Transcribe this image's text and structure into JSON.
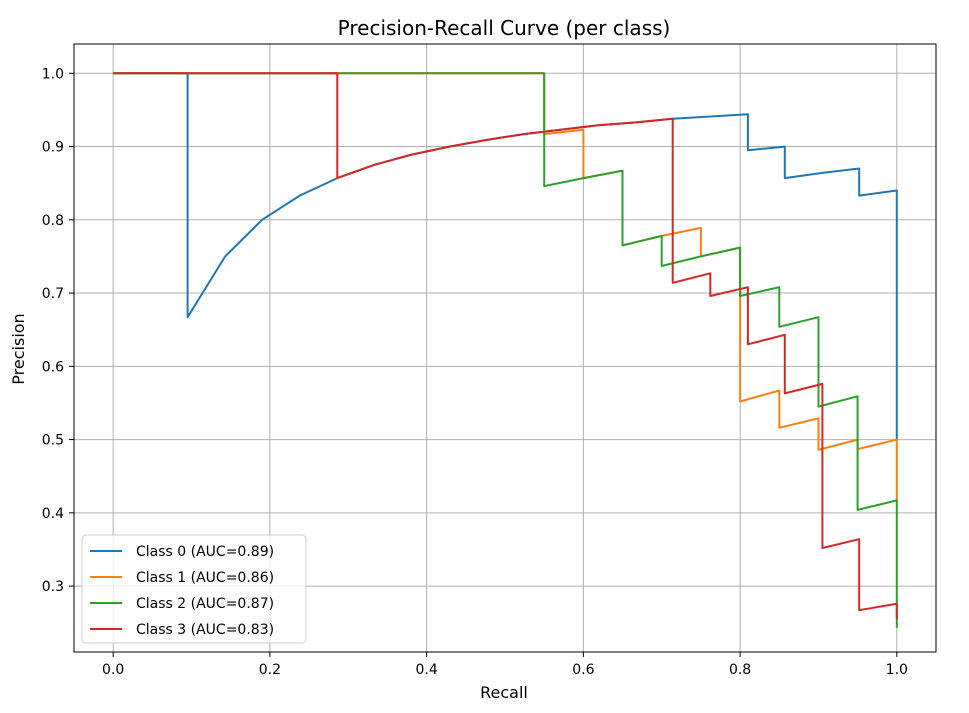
{
  "chart_data": {
    "type": "line",
    "title": "Precision-Recall Curve (per class)",
    "xlabel": "Recall",
    "ylabel": "Precision",
    "xlim": [
      -0.05,
      1.05
    ],
    "ylim": [
      0.21,
      1.04
    ],
    "x_ticks": [
      "0.0",
      "0.2",
      "0.4",
      "0.6",
      "0.8",
      "1.0"
    ],
    "y_ticks": [
      "0.3",
      "0.4",
      "0.5",
      "0.6",
      "0.7",
      "0.8",
      "0.9",
      "1.0"
    ],
    "grid": true,
    "legend_position": "lower-left",
    "series": [
      {
        "name": "Class 0 (AUC=0.89)",
        "color": "#1f77b4",
        "points": [
          [
            0,
            1
          ],
          [
            0.095,
            1
          ],
          [
            0.095,
            0.667
          ],
          [
            0.143,
            0.75
          ],
          [
            0.19,
            0.8
          ],
          [
            0.238,
            0.833
          ],
          [
            0.286,
            0.857
          ],
          [
            0.333,
            0.875
          ],
          [
            0.381,
            0.889
          ],
          [
            0.429,
            0.9
          ],
          [
            0.476,
            0.909
          ],
          [
            0.524,
            0.917
          ],
          [
            0.571,
            0.923
          ],
          [
            0.619,
            0.929
          ],
          [
            0.667,
            0.933
          ],
          [
            0.714,
            0.938
          ],
          [
            0.762,
            0.941
          ],
          [
            0.81,
            0.944
          ],
          [
            0.81,
            0.895
          ],
          [
            0.857,
            0.9
          ],
          [
            0.857,
            0.857
          ],
          [
            0.905,
            0.864
          ],
          [
            0.952,
            0.87
          ],
          [
            0.952,
            0.833
          ],
          [
            1.0,
            0.84
          ],
          [
            1.0,
            0.5
          ]
        ]
      },
      {
        "name": "Class 1 (AUC=0.86)",
        "color": "#ff7f0e",
        "points": [
          [
            0,
            1
          ],
          [
            0.55,
            1
          ],
          [
            0.55,
            0.917
          ],
          [
            0.6,
            0.923
          ],
          [
            0.6,
            0.857
          ],
          [
            0.65,
            0.867
          ],
          [
            0.65,
            0.765
          ],
          [
            0.7,
            0.778
          ],
          [
            0.75,
            0.789
          ],
          [
            0.75,
            0.75
          ],
          [
            0.8,
            0.762
          ],
          [
            0.8,
            0.552
          ],
          [
            0.85,
            0.567
          ],
          [
            0.85,
            0.516
          ],
          [
            0.9,
            0.529
          ],
          [
            0.9,
            0.486
          ],
          [
            0.95,
            0.5
          ],
          [
            0.95,
            0.487
          ],
          [
            1.0,
            0.5
          ],
          [
            1.0,
            0.417
          ]
        ]
      },
      {
        "name": "Class 2 (AUC=0.87)",
        "color": "#2ca02c",
        "points": [
          [
            0,
            1
          ],
          [
            0.55,
            1
          ],
          [
            0.55,
            0.846
          ],
          [
            0.6,
            0.857
          ],
          [
            0.65,
            0.867
          ],
          [
            0.65,
            0.765
          ],
          [
            0.7,
            0.778
          ],
          [
            0.7,
            0.737
          ],
          [
            0.75,
            0.75
          ],
          [
            0.8,
            0.762
          ],
          [
            0.8,
            0.696
          ],
          [
            0.85,
            0.708
          ],
          [
            0.85,
            0.654
          ],
          [
            0.9,
            0.667
          ],
          [
            0.9,
            0.545
          ],
          [
            0.95,
            0.559
          ],
          [
            0.95,
            0.404
          ],
          [
            1.0,
            0.417
          ],
          [
            1.0,
            0.243
          ]
        ]
      },
      {
        "name": "Class 3 (AUC=0.83)",
        "color": "#d62728",
        "points": [
          [
            0,
            1
          ],
          [
            0.286,
            1
          ],
          [
            0.286,
            0.857
          ],
          [
            0.333,
            0.875
          ],
          [
            0.381,
            0.889
          ],
          [
            0.429,
            0.9
          ],
          [
            0.476,
            0.909
          ],
          [
            0.524,
            0.917
          ],
          [
            0.571,
            0.923
          ],
          [
            0.619,
            0.929
          ],
          [
            0.667,
            0.933
          ],
          [
            0.714,
            0.938
          ],
          [
            0.714,
            0.714
          ],
          [
            0.762,
            0.727
          ],
          [
            0.762,
            0.696
          ],
          [
            0.81,
            0.708
          ],
          [
            0.81,
            0.63
          ],
          [
            0.857,
            0.643
          ],
          [
            0.857,
            0.563
          ],
          [
            0.905,
            0.576
          ],
          [
            0.905,
            0.352
          ],
          [
            0.952,
            0.364
          ],
          [
            0.952,
            0.267
          ],
          [
            1.0,
            0.276
          ],
          [
            1.0,
            0.255
          ]
        ]
      }
    ]
  }
}
